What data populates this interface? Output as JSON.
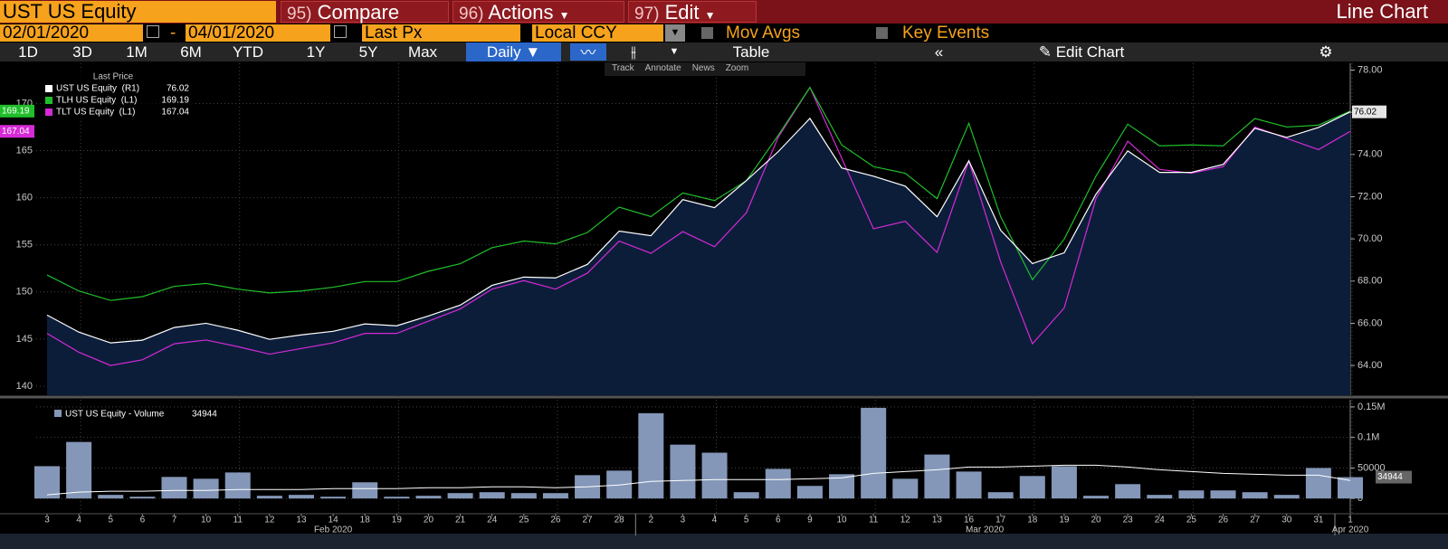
{
  "toolbar": {
    "security": "UST US Equity",
    "compare_no": "95)",
    "compare": "Compare",
    "actions_no": "96)",
    "actions": "Actions",
    "edit_no": "97)",
    "edit": "Edit",
    "view": "Line Chart",
    "start_date": "02/01/2020",
    "date_sep": "-",
    "end_date": "04/01/2020",
    "field": "Last Px",
    "currency": "Local CCY",
    "mov_avgs": "Mov Avgs",
    "key_events": "Key Events",
    "periods": [
      "1D",
      "3D",
      "1M",
      "6M",
      "YTD",
      "1Y",
      "5Y",
      "Max"
    ],
    "frequency": "Daily",
    "table": "Table",
    "edit_chart": "Edit Chart",
    "tools": [
      "Track",
      "Annotate",
      "News",
      "Zoom"
    ]
  },
  "chart_data": [
    {
      "type": "line",
      "legend_title": "Last Price",
      "categories": [
        "3",
        "4",
        "5",
        "6",
        "7",
        "10",
        "11",
        "12",
        "13",
        "14",
        "18",
        "19",
        "20",
        "21",
        "24",
        "25",
        "26",
        "27",
        "28",
        "2",
        "3",
        "4",
        "5",
        "6",
        "9",
        "10",
        "11",
        "12",
        "13",
        "16",
        "17",
        "18",
        "19",
        "20",
        "23",
        "24",
        "25",
        "26",
        "27",
        "30",
        "31",
        "1"
      ],
      "x_groups": [
        "Feb 2020",
        "Mar 2020",
        "Apr 2020"
      ],
      "series": [
        {
          "name": "UST US Equity  (R1)",
          "color": "#ffffff",
          "fill": "#0c1d3a",
          "axis": "y2",
          "values": [
            66.39,
            65.58,
            65.07,
            65.2,
            65.8,
            66.0,
            65.67,
            65.24,
            65.45,
            65.62,
            65.97,
            65.88,
            66.35,
            66.86,
            67.8,
            68.19,
            68.15,
            68.79,
            70.37,
            70.15,
            71.86,
            71.48,
            72.76,
            74.13,
            75.71,
            73.36,
            72.97,
            72.5,
            71.05,
            73.7,
            70.41,
            68.83,
            69.34,
            72.12,
            74.17,
            73.15,
            73.15,
            73.53,
            75.24,
            74.81,
            75.28,
            76.02
          ]
        },
        {
          "name": "TLH US Equity  (L1)",
          "color": "#1fbf2a",
          "values": [
            151.8,
            150.1,
            149.1,
            149.5,
            150.6,
            150.9,
            150.3,
            149.9,
            150.1,
            150.5,
            151.1,
            151.1,
            152.2,
            153.0,
            154.7,
            155.4,
            155.1,
            156.3,
            159.0,
            158.0,
            160.5,
            159.7,
            161.8,
            166.6,
            171.7,
            165.6,
            163.3,
            162.6,
            159.9,
            167.9,
            158.0,
            151.3,
            155.6,
            162.3,
            167.8,
            165.5,
            165.6,
            165.5,
            168.4,
            167.5,
            167.7,
            169.19
          ]
        },
        {
          "name": "TLT US Equity  (L1)",
          "color": "#d52ad6",
          "values": [
            145.6,
            143.6,
            142.2,
            142.8,
            144.5,
            144.9,
            144.2,
            143.4,
            144.0,
            144.6,
            145.6,
            145.6,
            146.9,
            148.2,
            150.3,
            151.2,
            150.3,
            152.0,
            155.4,
            154.1,
            156.4,
            154.8,
            158.4,
            166.4,
            171.7,
            164.2,
            156.7,
            157.5,
            154.2,
            163.9,
            153.2,
            144.5,
            148.3,
            159.9,
            166.0,
            163.0,
            162.6,
            163.3,
            167.5,
            166.3,
            165.1,
            167.04
          ]
        }
      ],
      "ylim": [
        139.04,
        174.26
      ],
      "yticks": [
        140,
        145,
        150,
        155,
        160,
        165,
        170
      ],
      "y2lim": [
        62.59,
        78.32
      ],
      "y2ticks": [
        {
          "value": 64,
          "label": "64.00"
        },
        {
          "value": 66,
          "label": "66.00"
        },
        {
          "value": 68,
          "label": "68.00"
        },
        {
          "value": 70,
          "label": "70.00"
        },
        {
          "value": 72,
          "label": "72.00"
        },
        {
          "value": 74,
          "label": "74.00"
        },
        {
          "value": 76,
          "label": "76.00"
        },
        {
          "value": 78,
          "label": "78.00"
        }
      ],
      "grid": true
    },
    {
      "type": "bar",
      "series": [
        {
          "name": "UST US Equity - Volume",
          "color": "#8497b8",
          "values": [
            52900,
            92600,
            5900,
            2900,
            35300,
            32300,
            42600,
            4400,
            5900,
            2900,
            26500,
            2900,
            4400,
            8800,
            10300,
            8800,
            8800,
            38200,
            45600,
            139700,
            88200,
            75000,
            10300,
            48500,
            20600,
            39700,
            148500,
            32300,
            72000,
            44100,
            10300,
            36800,
            52900,
            4400,
            23500,
            5900,
            13200,
            13200,
            10300,
            5900,
            50000,
            34944
          ]
        },
        {
          "type": "line",
          "color": "#ffffff",
          "values": [
            5900,
            10300,
            11800,
            11800,
            13200,
            13200,
            14700,
            14700,
            14700,
            16200,
            16200,
            16200,
            17600,
            17600,
            19100,
            19100,
            17600,
            19100,
            22100,
            27900,
            29400,
            30900,
            30900,
            30900,
            32300,
            33800,
            41200,
            44100,
            47000,
            51500,
            51500,
            52900,
            54400,
            54400,
            51500,
            47000,
            44100,
            41200,
            39700,
            38200,
            38200,
            29400
          ]
        }
      ],
      "ylim": [
        -23500,
        161700
      ],
      "yticks": [
        0,
        50000,
        {
          "value": 100000,
          "label": "0.1M"
        },
        {
          "value": 150000,
          "label": "0.15M"
        }
      ]
    }
  ]
}
